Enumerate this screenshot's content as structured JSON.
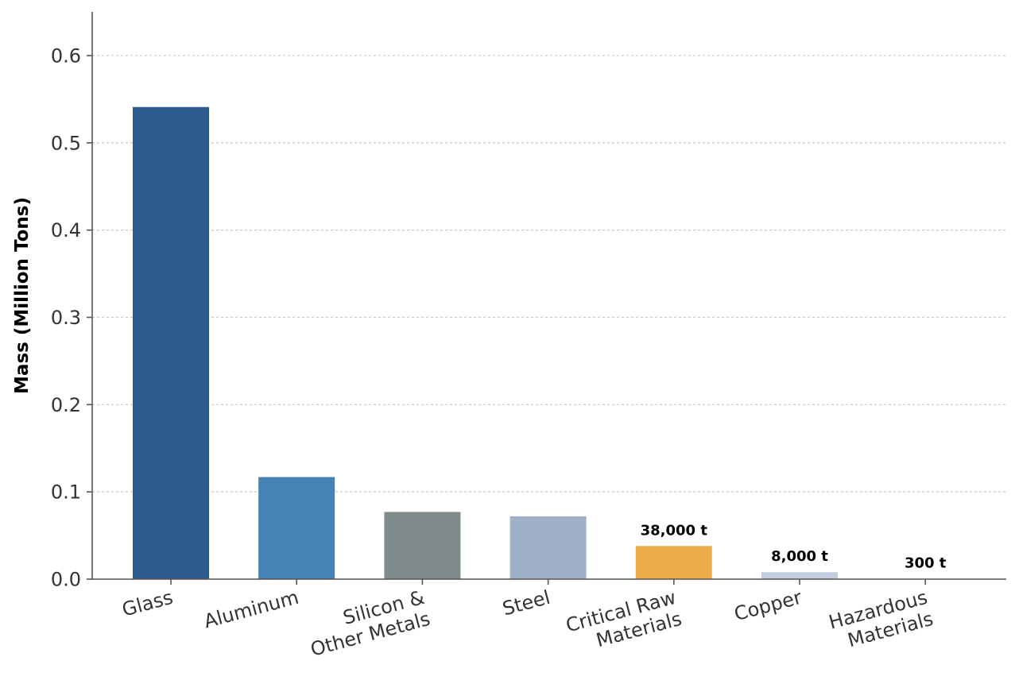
{
  "chart_data": {
    "type": "bar",
    "categories": [
      [
        "Glass"
      ],
      [
        "Aluminum"
      ],
      [
        "Silicon &",
        "Other Metals"
      ],
      [
        "Steel"
      ],
      [
        "Critical Raw",
        "Materials"
      ],
      [
        "Copper"
      ],
      [
        "Hazardous",
        "Materials"
      ]
    ],
    "values": [
      0.541,
      0.117,
      0.077,
      0.072,
      0.038,
      0.008,
      0.0003
    ],
    "data_labels": [
      "",
      "",
      "",
      "",
      "38,000 t",
      "8,000 t",
      "300 t"
    ],
    "colors": [
      "#2d5b8c",
      "#4682b4",
      "#7f8b8b",
      "#a0b1c7",
      "#edac4c",
      "#c2cde0",
      "#c2cde0"
    ],
    "xlabel": "",
    "ylabel": "Mass (Million Tons)",
    "ylim": [
      0,
      0.65
    ],
    "yticks": [
      0.0,
      0.1,
      0.2,
      0.3,
      0.4,
      0.5,
      0.6
    ],
    "ytick_labels": [
      "0.0",
      "0.1",
      "0.2",
      "0.3",
      "0.4",
      "0.5",
      "0.6"
    ],
    "grid": "y-dashed",
    "legend": "none"
  }
}
